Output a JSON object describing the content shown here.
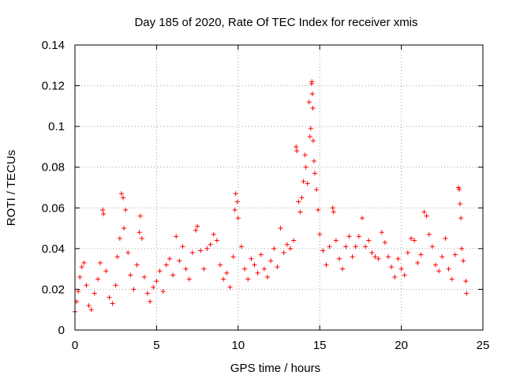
{
  "chart_data": {
    "type": "scatter",
    "title": "Day 185 of 2020, Rate Of TEC Index for receiver xmis",
    "xlabel": "GPS time / hours",
    "ylabel": "ROTI / TECUs",
    "xlim": [
      0,
      25
    ],
    "ylim": [
      0,
      0.14
    ],
    "x_ticks": [
      "0",
      "5",
      "10",
      "15",
      "20",
      "25"
    ],
    "y_ticks": [
      "0",
      "0.02",
      "0.04",
      "0.06",
      "0.08",
      "0.1",
      "0.12",
      "0.14"
    ],
    "grid": true,
    "marker": "+",
    "color": "#ff0000",
    "series": [
      {
        "points": [
          [
            0.0,
            0.009
          ],
          [
            0.1,
            0.014
          ],
          [
            0.2,
            0.019
          ],
          [
            0.3,
            0.026
          ],
          [
            0.42,
            0.031
          ],
          [
            0.55,
            0.033
          ],
          [
            0.7,
            0.022
          ],
          [
            0.85,
            0.012
          ],
          [
            1.0,
            0.01
          ],
          [
            1.2,
            0.018
          ],
          [
            1.4,
            0.025
          ],
          [
            1.55,
            0.033
          ],
          [
            1.7,
            0.059
          ],
          [
            1.75,
            0.057
          ],
          [
            1.9,
            0.029
          ],
          [
            2.1,
            0.016
          ],
          [
            2.3,
            0.013
          ],
          [
            2.5,
            0.022
          ],
          [
            2.6,
            0.036
          ],
          [
            2.75,
            0.045
          ],
          [
            2.85,
            0.067
          ],
          [
            2.95,
            0.065
          ],
          [
            3.0,
            0.05
          ],
          [
            3.1,
            0.059
          ],
          [
            3.25,
            0.038
          ],
          [
            3.4,
            0.027
          ],
          [
            3.6,
            0.02
          ],
          [
            3.8,
            0.032
          ],
          [
            3.95,
            0.048
          ],
          [
            4.0,
            0.056
          ],
          [
            4.1,
            0.045
          ],
          [
            4.25,
            0.026
          ],
          [
            4.45,
            0.018
          ],
          [
            4.6,
            0.014
          ],
          [
            4.8,
            0.021
          ],
          [
            5.0,
            0.024
          ],
          [
            5.2,
            0.029
          ],
          [
            5.4,
            0.019
          ],
          [
            5.6,
            0.032
          ],
          [
            5.8,
            0.035
          ],
          [
            6.0,
            0.027
          ],
          [
            6.2,
            0.046
          ],
          [
            6.4,
            0.034
          ],
          [
            6.6,
            0.041
          ],
          [
            6.8,
            0.03
          ],
          [
            7.0,
            0.025
          ],
          [
            7.2,
            0.038
          ],
          [
            7.4,
            0.049
          ],
          [
            7.5,
            0.051
          ],
          [
            7.7,
            0.039
          ],
          [
            7.9,
            0.03
          ],
          [
            8.1,
            0.04
          ],
          [
            8.3,
            0.042
          ],
          [
            8.5,
            0.047
          ],
          [
            8.7,
            0.044
          ],
          [
            8.9,
            0.032
          ],
          [
            9.1,
            0.025
          ],
          [
            9.3,
            0.028
          ],
          [
            9.5,
            0.021
          ],
          [
            9.7,
            0.036
          ],
          [
            9.8,
            0.059
          ],
          [
            9.85,
            0.067
          ],
          [
            9.95,
            0.063
          ],
          [
            10.0,
            0.055
          ],
          [
            10.2,
            0.041
          ],
          [
            10.4,
            0.03
          ],
          [
            10.6,
            0.025
          ],
          [
            10.8,
            0.035
          ],
          [
            11.0,
            0.032
          ],
          [
            11.2,
            0.028
          ],
          [
            11.4,
            0.037
          ],
          [
            11.6,
            0.03
          ],
          [
            11.8,
            0.026
          ],
          [
            12.0,
            0.034
          ],
          [
            12.2,
            0.04
          ],
          [
            12.4,
            0.031
          ],
          [
            12.6,
            0.05
          ],
          [
            12.8,
            0.038
          ],
          [
            13.0,
            0.042
          ],
          [
            13.2,
            0.04
          ],
          [
            13.4,
            0.044
          ],
          [
            13.55,
            0.09
          ],
          [
            13.6,
            0.088
          ],
          [
            13.7,
            0.063
          ],
          [
            13.8,
            0.058
          ],
          [
            13.9,
            0.065
          ],
          [
            14.0,
            0.073
          ],
          [
            14.1,
            0.086
          ],
          [
            14.15,
            0.08
          ],
          [
            14.25,
            0.072
          ],
          [
            14.35,
            0.112
          ],
          [
            14.4,
            0.095
          ],
          [
            14.45,
            0.099
          ],
          [
            14.5,
            0.121
          ],
          [
            14.52,
            0.122
          ],
          [
            14.55,
            0.116
          ],
          [
            14.58,
            0.109
          ],
          [
            14.6,
            0.093
          ],
          [
            14.65,
            0.083
          ],
          [
            14.7,
            0.077
          ],
          [
            14.8,
            0.069
          ],
          [
            14.9,
            0.059
          ],
          [
            15.0,
            0.047
          ],
          [
            15.2,
            0.039
          ],
          [
            15.4,
            0.032
          ],
          [
            15.6,
            0.041
          ],
          [
            15.8,
            0.06
          ],
          [
            15.85,
            0.058
          ],
          [
            16.0,
            0.044
          ],
          [
            16.2,
            0.035
          ],
          [
            16.4,
            0.03
          ],
          [
            16.6,
            0.041
          ],
          [
            16.8,
            0.046
          ],
          [
            17.0,
            0.036
          ],
          [
            17.2,
            0.041
          ],
          [
            17.4,
            0.046
          ],
          [
            17.6,
            0.055
          ],
          [
            17.8,
            0.041
          ],
          [
            18.0,
            0.044
          ],
          [
            18.2,
            0.038
          ],
          [
            18.4,
            0.036
          ],
          [
            18.6,
            0.035
          ],
          [
            18.8,
            0.048
          ],
          [
            19.0,
            0.043
          ],
          [
            19.2,
            0.036
          ],
          [
            19.4,
            0.031
          ],
          [
            19.6,
            0.026
          ],
          [
            19.8,
            0.035
          ],
          [
            20.0,
            0.03
          ],
          [
            20.2,
            0.027
          ],
          [
            20.4,
            0.038
          ],
          [
            20.6,
            0.045
          ],
          [
            20.8,
            0.044
          ],
          [
            21.0,
            0.033
          ],
          [
            21.2,
            0.037
          ],
          [
            21.4,
            0.058
          ],
          [
            21.55,
            0.056
          ],
          [
            21.7,
            0.047
          ],
          [
            21.9,
            0.041
          ],
          [
            22.1,
            0.032
          ],
          [
            22.3,
            0.029
          ],
          [
            22.5,
            0.036
          ],
          [
            22.7,
            0.045
          ],
          [
            22.9,
            0.03
          ],
          [
            23.1,
            0.025
          ],
          [
            23.3,
            0.037
          ],
          [
            23.5,
            0.07
          ],
          [
            23.55,
            0.069
          ],
          [
            23.6,
            0.062
          ],
          [
            23.65,
            0.055
          ],
          [
            23.7,
            0.04
          ],
          [
            23.8,
            0.034
          ],
          [
            23.95,
            0.024
          ],
          [
            24.0,
            0.018
          ]
        ]
      }
    ]
  }
}
